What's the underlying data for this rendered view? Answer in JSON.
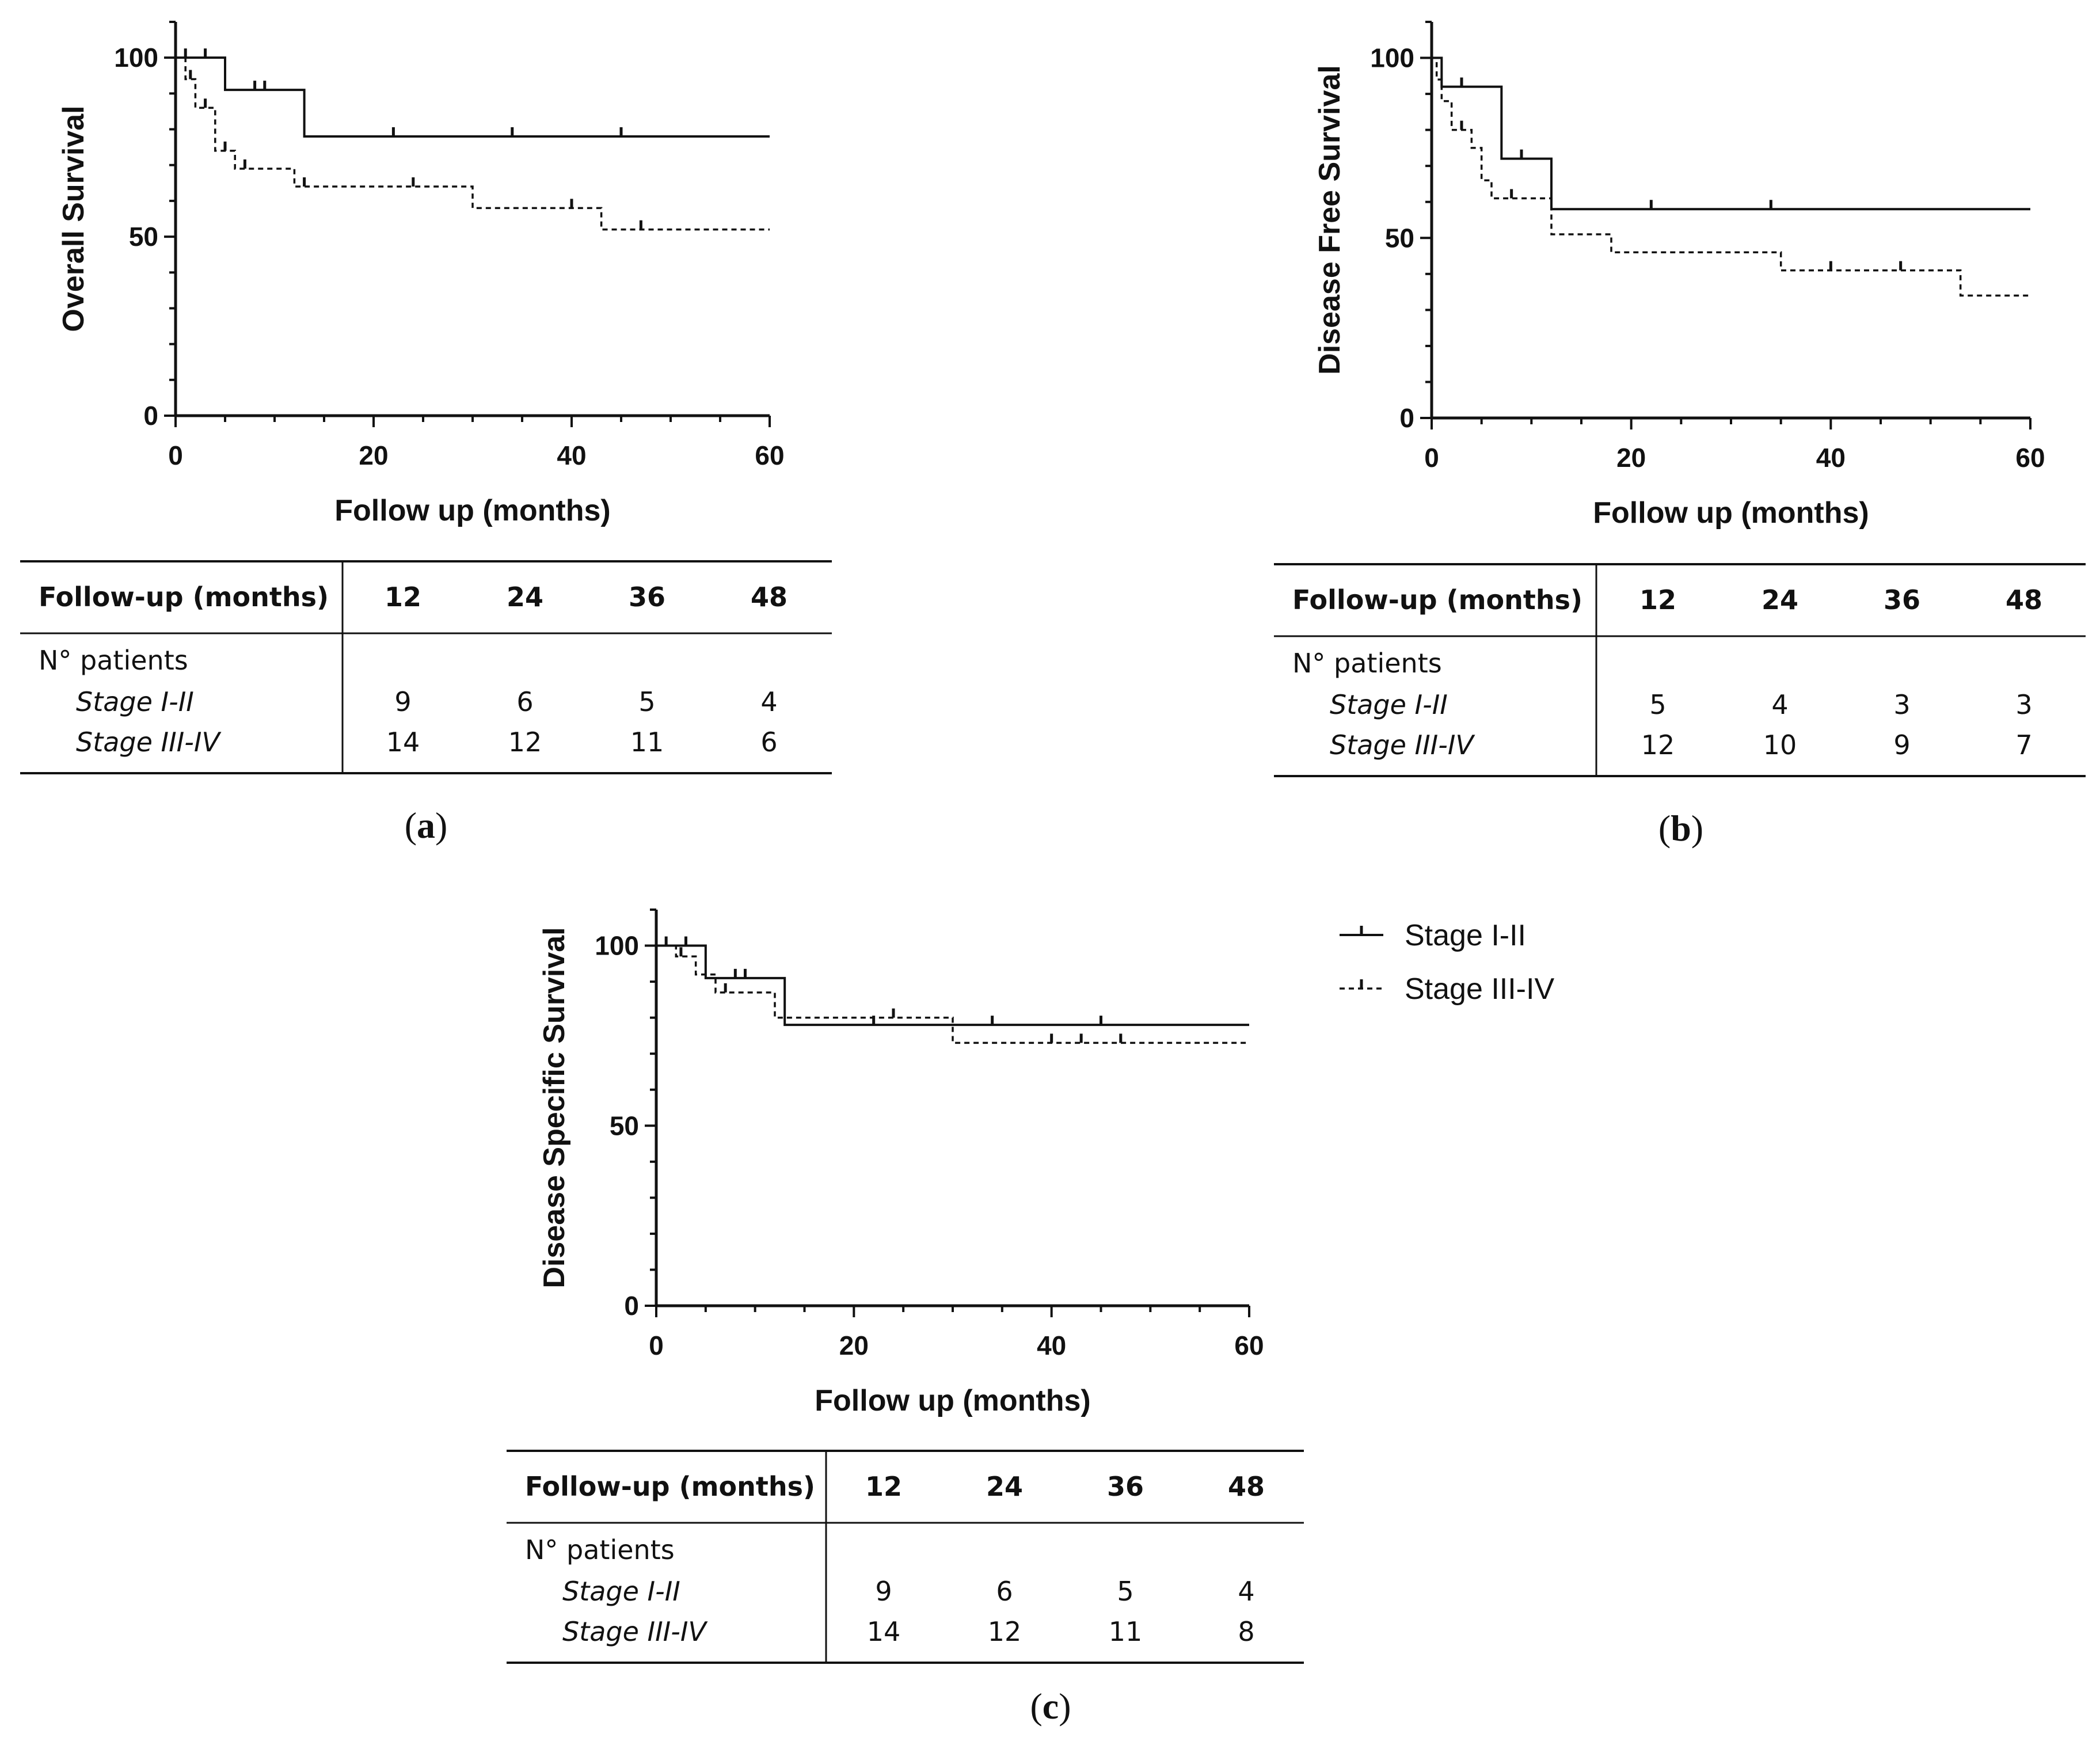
{
  "legend": {
    "series": [
      {
        "name": "Stage I-II",
        "style": "solid"
      },
      {
        "name": "Stage III-IV",
        "style": "dashed"
      }
    ]
  },
  "chart_data": [
    {
      "panel": "a",
      "caption": "(a)",
      "type": "line",
      "title": "",
      "xlabel": "Follow up (months)",
      "ylabel": "Overall  Survival",
      "xlim": [
        0,
        60
      ],
      "ylim": [
        0,
        110
      ],
      "xticks": [
        0,
        20,
        40,
        60
      ],
      "yticks": [
        0,
        50,
        100
      ],
      "series": [
        {
          "name": "Stage I-II",
          "style": "solid",
          "steps": [
            [
              0,
              100
            ],
            [
              5,
              91
            ],
            [
              13,
              78
            ],
            [
              60,
              78
            ]
          ],
          "censored": [
            [
              1,
              100
            ],
            [
              3,
              100
            ],
            [
              8,
              91
            ],
            [
              9,
              91
            ],
            [
              22,
              78
            ],
            [
              34,
              78
            ],
            [
              45,
              78
            ]
          ]
        },
        {
          "name": "Stage III-IV",
          "style": "dashed",
          "steps": [
            [
              0,
              100
            ],
            [
              1,
              94
            ],
            [
              2,
              86
            ],
            [
              4,
              74
            ],
            [
              6,
              69
            ],
            [
              12,
              64
            ],
            [
              30,
              58
            ],
            [
              43,
              52
            ],
            [
              60,
              52
            ]
          ],
          "censored": [
            [
              1.5,
              94
            ],
            [
              3,
              86
            ],
            [
              5,
              74
            ],
            [
              7,
              69
            ],
            [
              13,
              64
            ],
            [
              24,
              64
            ],
            [
              40,
              58
            ],
            [
              47,
              52
            ]
          ]
        }
      ],
      "table": {
        "header_label": "Follow-up (months)",
        "timepoints": [
          "12",
          "24",
          "36",
          "48"
        ],
        "group_label": "N° patients",
        "rows": [
          {
            "label": "Stage I-II",
            "values": [
              "9",
              "6",
              "5",
              "4"
            ]
          },
          {
            "label": "Stage III-IV",
            "values": [
              "14",
              "12",
              "11",
              "6"
            ]
          }
        ]
      }
    },
    {
      "panel": "b",
      "caption": "(b)",
      "type": "line",
      "title": "",
      "xlabel": "Follow up (months)",
      "ylabel": "Disease Free Survival",
      "xlim": [
        0,
        60
      ],
      "ylim": [
        0,
        110
      ],
      "xticks": [
        0,
        20,
        40,
        60
      ],
      "yticks": [
        0,
        50,
        100
      ],
      "series": [
        {
          "name": "Stage I-II",
          "style": "solid",
          "steps": [
            [
              0,
              100
            ],
            [
              1,
              92
            ],
            [
              7,
              72
            ],
            [
              12,
              58
            ],
            [
              60,
              58
            ]
          ],
          "censored": [
            [
              3,
              92
            ],
            [
              9,
              72
            ],
            [
              22,
              58
            ],
            [
              34,
              58
            ]
          ]
        },
        {
          "name": "Stage III-IV",
          "style": "dashed",
          "steps": [
            [
              0,
              100
            ],
            [
              0.5,
              94
            ],
            [
              1,
              88
            ],
            [
              2,
              80
            ],
            [
              4,
              75
            ],
            [
              5,
              66
            ],
            [
              6,
              61
            ],
            [
              12,
              51
            ],
            [
              18,
              46
            ],
            [
              35,
              41
            ],
            [
              53,
              34
            ],
            [
              60,
              34
            ]
          ],
          "censored": [
            [
              3,
              80
            ],
            [
              8,
              61
            ],
            [
              40,
              41
            ],
            [
              47,
              41
            ]
          ]
        }
      ],
      "table": {
        "header_label": "Follow-up (months)",
        "timepoints": [
          "12",
          "24",
          "36",
          "48"
        ],
        "group_label": "N° patients",
        "rows": [
          {
            "label": "Stage I-II",
            "values": [
              "5",
              "4",
              "3",
              "3"
            ]
          },
          {
            "label": "Stage III-IV",
            "values": [
              "12",
              "10",
              "9",
              "7"
            ]
          }
        ]
      }
    },
    {
      "panel": "c",
      "caption": "(c)",
      "type": "line",
      "title": "",
      "xlabel": "Follow up (months)",
      "ylabel": "Disease Specific Survival",
      "xlim": [
        0,
        60
      ],
      "ylim": [
        0,
        110
      ],
      "xticks": [
        0,
        20,
        40,
        60
      ],
      "yticks": [
        0,
        50,
        100
      ],
      "series": [
        {
          "name": "Stage I-II",
          "style": "solid",
          "steps": [
            [
              0,
              100
            ],
            [
              5,
              91
            ],
            [
              13,
              78
            ],
            [
              60,
              78
            ]
          ],
          "censored": [
            [
              1,
              100
            ],
            [
              3,
              100
            ],
            [
              8,
              91
            ],
            [
              9,
              91
            ],
            [
              22,
              78
            ],
            [
              34,
              78
            ],
            [
              45,
              78
            ]
          ]
        },
        {
          "name": "Stage III-IV",
          "style": "dashed",
          "steps": [
            [
              0,
              100
            ],
            [
              2,
              97
            ],
            [
              4,
              92
            ],
            [
              6,
              87
            ],
            [
              12,
              80
            ],
            [
              30,
              73
            ],
            [
              60,
              73
            ]
          ],
          "censored": [
            [
              2.5,
              97
            ],
            [
              7,
              87
            ],
            [
              24,
              80
            ],
            [
              40,
              73
            ],
            [
              43,
              73
            ],
            [
              47,
              73
            ]
          ]
        }
      ],
      "table": {
        "header_label": "Follow-up (months)",
        "timepoints": [
          "12",
          "24",
          "36",
          "48"
        ],
        "group_label": "N° patients",
        "rows": [
          {
            "label": "Stage I-II",
            "values": [
              "9",
              "6",
              "5",
              "4"
            ]
          },
          {
            "label": "Stage III-IV",
            "values": [
              "14",
              "12",
              "11",
              "8"
            ]
          }
        ]
      }
    }
  ]
}
